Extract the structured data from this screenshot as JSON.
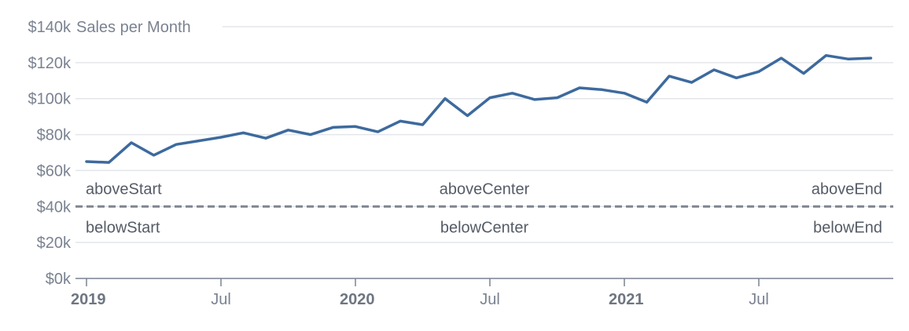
{
  "chart_data": {
    "type": "line",
    "title": "Sales per Month",
    "xlabel": "",
    "ylabel": "",
    "ylim": [
      0,
      140000
    ],
    "y_ticks": [
      {
        "value": 0,
        "label": "$0k"
      },
      {
        "value": 20000,
        "label": "$20k"
      },
      {
        "value": 40000,
        "label": "$40k"
      },
      {
        "value": 60000,
        "label": "$60k"
      },
      {
        "value": 80000,
        "label": "$80k"
      },
      {
        "value": 100000,
        "label": "$100k"
      },
      {
        "value": 120000,
        "label": "$120k"
      },
      {
        "value": 140000,
        "label": "$140k"
      }
    ],
    "x_ticks": [
      {
        "date": "2019-01",
        "label": "2019",
        "major": true
      },
      {
        "date": "2019-07",
        "label": "Jul",
        "major": false
      },
      {
        "date": "2020-01",
        "label": "2020",
        "major": true
      },
      {
        "date": "2020-07",
        "label": "Jul",
        "major": false
      },
      {
        "date": "2021-01",
        "label": "2021",
        "major": true
      },
      {
        "date": "2021-07",
        "label": "Jul",
        "major": false
      }
    ],
    "grid": true,
    "series": [
      {
        "color": "#3d6a9e",
        "points": [
          {
            "x": "2019-01",
            "y": 65000
          },
          {
            "x": "2019-02",
            "y": 64500
          },
          {
            "x": "2019-03",
            "y": 75500
          },
          {
            "x": "2019-04",
            "y": 68500
          },
          {
            "x": "2019-05",
            "y": 74500
          },
          {
            "x": "2019-06",
            "y": 76500
          },
          {
            "x": "2019-07",
            "y": 78500
          },
          {
            "x": "2019-08",
            "y": 81000
          },
          {
            "x": "2019-09",
            "y": 78000
          },
          {
            "x": "2019-10",
            "y": 82500
          },
          {
            "x": "2019-11",
            "y": 80000
          },
          {
            "x": "2019-12",
            "y": 84000
          },
          {
            "x": "2020-01",
            "y": 84500
          },
          {
            "x": "2020-02",
            "y": 81500
          },
          {
            "x": "2020-03",
            "y": 87500
          },
          {
            "x": "2020-04",
            "y": 85500
          },
          {
            "x": "2020-05",
            "y": 100000
          },
          {
            "x": "2020-06",
            "y": 90500
          },
          {
            "x": "2020-07",
            "y": 100500
          },
          {
            "x": "2020-08",
            "y": 103000
          },
          {
            "x": "2020-09",
            "y": 99500
          },
          {
            "x": "2020-10",
            "y": 100500
          },
          {
            "x": "2020-11",
            "y": 106000
          },
          {
            "x": "2020-12",
            "y": 105000
          },
          {
            "x": "2021-01",
            "y": 103000
          },
          {
            "x": "2021-02",
            "y": 98000
          },
          {
            "x": "2021-03",
            "y": 112500
          },
          {
            "x": "2021-04",
            "y": 109000
          },
          {
            "x": "2021-05",
            "y": 116000
          },
          {
            "x": "2021-06",
            "y": 111500
          },
          {
            "x": "2021-07",
            "y": 115000
          },
          {
            "x": "2021-08",
            "y": 122500
          },
          {
            "x": "2021-09",
            "y": 114000
          },
          {
            "x": "2021-10",
            "y": 124000
          },
          {
            "x": "2021-11",
            "y": 122000
          },
          {
            "x": "2021-12",
            "y": 122500
          }
        ]
      }
    ],
    "annotation": {
      "type": "horizontal-line",
      "value": 40000,
      "style": "dashed",
      "color": "#7f8690",
      "labels": [
        {
          "text": "aboveStart",
          "position": "above-start"
        },
        {
          "text": "aboveCenter",
          "position": "above-center"
        },
        {
          "text": "aboveEnd",
          "position": "above-end"
        },
        {
          "text": "belowStart",
          "position": "below-start"
        },
        {
          "text": "belowCenter",
          "position": "below-center"
        },
        {
          "text": "belowEnd",
          "position": "below-end"
        }
      ]
    }
  }
}
